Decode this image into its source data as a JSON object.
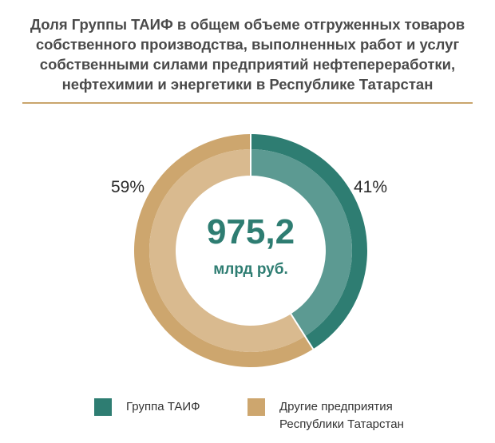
{
  "header": {
    "title_lines": [
      "Доля Группы ТАИФ в общем объеме отгруженных товаров",
      "собственного производства, выполненных работ и услуг",
      "собственными силами предприятий нефтепереработки,",
      "нефтехимии и энергетики в Республике Татарстан"
    ]
  },
  "colors": {
    "taif": "#2e7d72",
    "taif_inner": "#5c9a92",
    "other": "#cda66e",
    "other_inner": "#d9ba8f",
    "divider": "#c9a56c",
    "center_text": "#2e7d72"
  },
  "center": {
    "value": "975,2",
    "unit": "млрд руб."
  },
  "chart_data": {
    "type": "pie",
    "donut": true,
    "total": 975.2,
    "total_unit": "млрд руб.",
    "series": [
      {
        "name": "Группа ТАИФ",
        "value": 41,
        "label": "41%"
      },
      {
        "name": "Другие предприятия Республики Татарстан",
        "value": 59,
        "label": "59%"
      }
    ]
  },
  "legend": {
    "items": [
      {
        "lines": [
          "Группа ТАИФ"
        ]
      },
      {
        "lines": [
          "Другие предприятия",
          "Республики Татарстан"
        ]
      }
    ]
  }
}
